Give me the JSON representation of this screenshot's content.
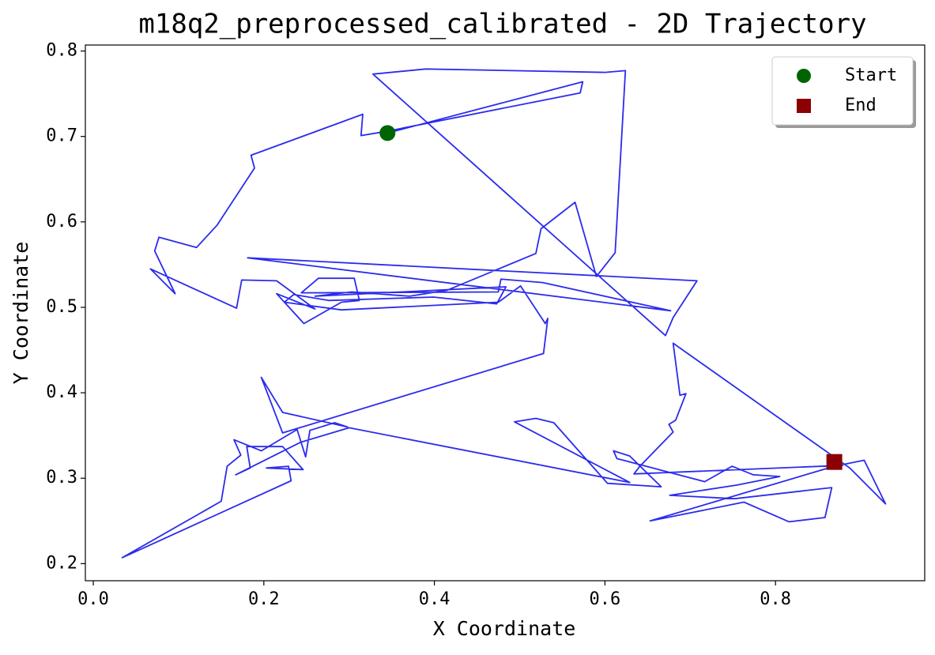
{
  "chart_data": {
    "type": "line",
    "title": "m18q2_preprocessed_calibrated - 2D Trajectory",
    "xlabel": "X Coordinate",
    "ylabel": "Y Coordinate",
    "xlim": [
      -0.0093,
      0.975
    ],
    "ylim": [
      0.18,
      0.807
    ],
    "xticks": [
      {
        "value": 0,
        "label": "0.0"
      },
      0.2,
      0.4,
      0.6,
      0.8
    ],
    "yticks": [
      0.2,
      0.3,
      0.4,
      0.5,
      0.6,
      0.7,
      0.8
    ],
    "legend": "upper right",
    "trajectory": {
      "color": "#2b2bee",
      "x": [
        0.345,
        0.574,
        0.571,
        0.344,
        0.314,
        0.316,
        0.185,
        0.189,
        0.145,
        0.121,
        0.077,
        0.072,
        0.096,
        0.067,
        0.168,
        0.174,
        0.215,
        0.26,
        0.215,
        0.247,
        0.291,
        0.312,
        0.306,
        0.264,
        0.244,
        0.475,
        0.478,
        0.527,
        0.677,
        0.181,
        0.708,
        0.68,
        0.671,
        0.328,
        0.39,
        0.6,
        0.624,
        0.612,
        0.59,
        0.565,
        0.525,
        0.519,
        0.415,
        0.371,
        0.303,
        0.26,
        0.484,
        0.473,
        0.399,
        0.276,
        0.235,
        0.224,
        0.291,
        0.475,
        0.501,
        0.53,
        0.533,
        0.528,
        0.222,
        0.197,
        0.222,
        0.298,
        0.283,
        0.254,
        0.249,
        0.239,
        0.197,
        0.165,
        0.173,
        0.157,
        0.15,
        0.034,
        0.232,
        0.229,
        0.203,
        0.246,
        0.222,
        0.18,
        0.184,
        0.167,
        0.243,
        0.3,
        0.629,
        0.494,
        0.519,
        0.54,
        0.603,
        0.666,
        0.629,
        0.61,
        0.614,
        0.717,
        0.749,
        0.774,
        0.805,
        0.755,
        0.676,
        0.752,
        0.866,
        0.858,
        0.816,
        0.763,
        0.653,
        0.869,
        0.904,
        0.929,
        0.887,
        0.68,
        0.688,
        0.695,
        0.683,
        0.675,
        0.68,
        0.641,
        0.634,
        0.879,
        0.869
      ],
      "y": [
        0.704,
        0.764,
        0.751,
        0.706,
        0.701,
        0.726,
        0.678,
        0.663,
        0.596,
        0.57,
        0.582,
        0.566,
        0.516,
        0.545,
        0.499,
        0.532,
        0.531,
        0.498,
        0.516,
        0.481,
        0.506,
        0.508,
        0.534,
        0.534,
        0.517,
        0.518,
        0.533,
        0.529,
        0.496,
        0.558,
        0.531,
        0.488,
        0.467,
        0.773,
        0.779,
        0.775,
        0.777,
        0.564,
        0.536,
        0.623,
        0.592,
        0.563,
        0.52,
        0.513,
        0.518,
        0.513,
        0.524,
        0.504,
        0.512,
        0.508,
        0.515,
        0.506,
        0.497,
        0.506,
        0.525,
        0.481,
        0.487,
        0.446,
        0.353,
        0.418,
        0.377,
        0.36,
        0.365,
        0.356,
        0.325,
        0.357,
        0.332,
        0.345,
        0.327,
        0.314,
        0.273,
        0.207,
        0.297,
        0.314,
        0.312,
        0.31,
        0.337,
        0.337,
        0.312,
        0.304,
        0.342,
        0.359,
        0.295,
        0.366,
        0.37,
        0.365,
        0.294,
        0.29,
        0.326,
        0.332,
        0.323,
        0.296,
        0.314,
        0.304,
        0.302,
        0.292,
        0.28,
        0.276,
        0.289,
        0.254,
        0.249,
        0.272,
        0.25,
        0.314,
        0.321,
        0.27,
        0.312,
        0.458,
        0.397,
        0.399,
        0.368,
        0.363,
        0.354,
        0.314,
        0.305,
        0.315,
        0.319
      ]
    },
    "markers": [
      {
        "name": "Start",
        "x": 0.345,
        "y": 0.704,
        "color": "#006400",
        "marker": "circle"
      },
      {
        "name": "End",
        "x": 0.869,
        "y": 0.319,
        "color": "#8b0000",
        "marker": "square"
      }
    ]
  }
}
